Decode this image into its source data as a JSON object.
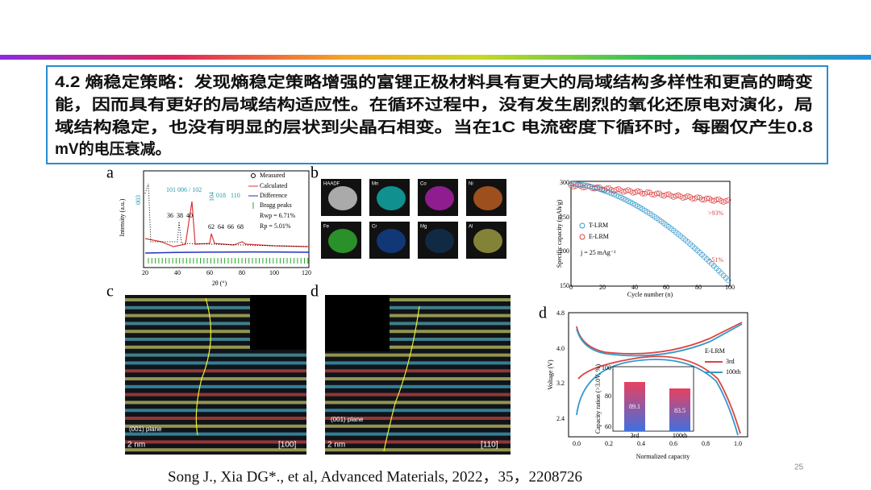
{
  "header": {
    "lines": [
      "4.2  熵稳定策略：发现熵稳定策略增强的富锂正极材料具有更大的局域结构多样性和更高的畸变",
      "能，因而具有更好的局域结构适应性。在循环过程中，没有发生剧烈的氧化还原电对演化，局",
      "域结构稳定，也没有明显的层状到尖晶石相变。当在1C  电流密度下循环时，每圈仅产生0.8",
      "mV的电压衰减。"
    ]
  },
  "figure": {
    "a": {
      "label": "a",
      "legend": [
        "Measured",
        "Calculated",
        "Difference",
        "Bragg peaks"
      ],
      "rwp": "Rwp = 6.71%",
      "rp": "Rp = 5.01%",
      "ylabel": "Intensity (a.u.)",
      "xlabel": "2θ (°)",
      "xticks": [
        "20",
        "40",
        "60",
        "80",
        "100",
        "120"
      ],
      "peaks": [
        "003",
        "104",
        "101",
        "006 / 102",
        "018",
        "110"
      ],
      "inset_ticks": [
        "36",
        "38",
        "40",
        "62",
        "64",
        "66",
        "68"
      ]
    },
    "b": {
      "label": "b",
      "tiles": [
        "HAADF",
        "Mn",
        "Co",
        "Ni",
        "Fe",
        "Cr",
        "Mg",
        "Al"
      ]
    },
    "cycle": {
      "ylabel": "Specific capacity (mAh/g)",
      "xlabel": "Cycle number (n)",
      "legend": [
        "T-LRM",
        "E-LRM"
      ],
      "current": "j = 25 mAg⁻¹",
      "retention_e": ">93%",
      "retention_t": "~51%",
      "xticks": [
        "0",
        "20",
        "40",
        "60",
        "80",
        "100"
      ],
      "yticks": [
        "150",
        "200",
        "250",
        "300"
      ]
    },
    "c": {
      "label": "c",
      "scale": "2 nm",
      "zone": "[100]",
      "plane": "(001) plane"
    },
    "d": {
      "label": "d",
      "scale": "2 nm",
      "zone": "[110]",
      "plane": "(001) plane"
    },
    "voltage": {
      "label": "d",
      "ylabel": "Voltage (V)",
      "xlabel": "Normalized capacity",
      "yticks": [
        "2.4",
        "3.2",
        "4.0",
        "4.8"
      ],
      "xticks": [
        "0.0",
        "0.2",
        "0.4",
        "0.6",
        "0.8",
        "1.0"
      ],
      "legend_title": "E-LRM",
      "legend": [
        "3rd",
        "100th"
      ],
      "inset_ylabel": "Capacity ration (>3.0V, %)",
      "inset_yticks": [
        "60",
        "80",
        "100"
      ],
      "inset_bars": [
        "89.1",
        "83.5"
      ],
      "inset_categories": [
        "3rd",
        "100th"
      ]
    }
  },
  "citation": "Song J., Xia DG*., et al, Advanced Materials, 2022，35，2208726",
  "page_number": "25"
}
